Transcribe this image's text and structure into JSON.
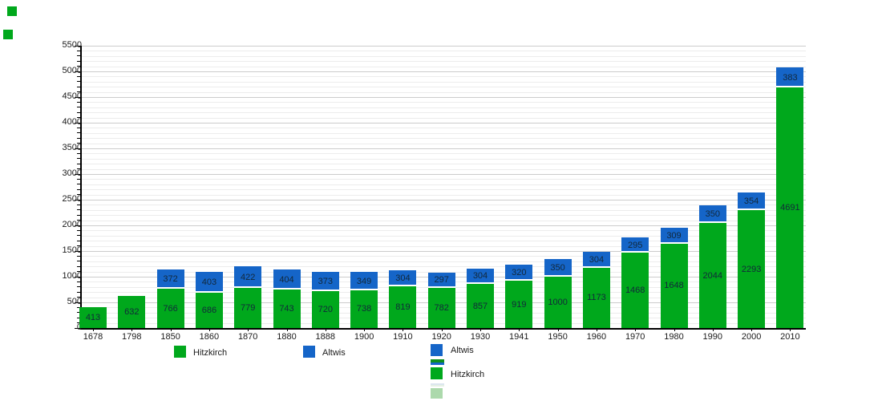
{
  "colors": {
    "hitzkirch_green": "#00A81C",
    "altwis_blue": "#1565C8",
    "stripe_green_dark": "#0E8F1E",
    "pale_green": "#ACD9AC",
    "pale_stripe_top": "#DBE6EF",
    "pale_stripe_bottom": "#E6F0E6",
    "axis_black": "#000000",
    "grid_minor": "#ECECEC",
    "grid_major": "#CCCCCC"
  },
  "chart_data": {
    "type": "bar",
    "stacked": true,
    "title": "",
    "xlabel": "",
    "ylabel": "",
    "ylim": [
      0,
      5500
    ],
    "ytick_label_step": 500,
    "ytick_minor_step": 100,
    "grid": "horizontal",
    "legend_position": "bottom",
    "categories": [
      "1678",
      "1798",
      "1850",
      "1860",
      "1870",
      "1880",
      "1888",
      "1900",
      "1910",
      "1920",
      "1930",
      "1941",
      "1950",
      "1960",
      "1970",
      "1980",
      "1990",
      "2000",
      "2010"
    ],
    "series": [
      {
        "name": "Hitzkirch",
        "color": "#00A81C",
        "values": [
          413,
          632,
          766,
          686,
          779,
          743,
          720,
          738,
          819,
          782,
          857,
          919,
          1000,
          1173,
          1468,
          1648,
          2044,
          2293,
          4691
        ]
      },
      {
        "name": "Altwis",
        "color": "#1565C8",
        "values": [
          null,
          null,
          372,
          403,
          422,
          404,
          373,
          349,
          304,
          297,
          304,
          320,
          350,
          304,
          295,
          309,
          350,
          354,
          383
        ]
      }
    ]
  },
  "legend": {
    "hitzkirch": "Hitzkirch",
    "altwis": "Altwis"
  }
}
